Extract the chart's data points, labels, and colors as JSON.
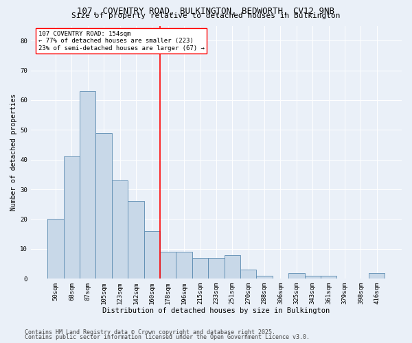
{
  "title_line1": "107, COVENTRY ROAD, BULKINGTON, BEDWORTH, CV12 9NB",
  "title_line2": "Size of property relative to detached houses in Bulkington",
  "xlabel": "Distribution of detached houses by size in Bulkington",
  "ylabel": "Number of detached properties",
  "categories": [
    "50sqm",
    "68sqm",
    "87sqm",
    "105sqm",
    "123sqm",
    "142sqm",
    "160sqm",
    "178sqm",
    "196sqm",
    "215sqm",
    "233sqm",
    "251sqm",
    "270sqm",
    "288sqm",
    "306sqm",
    "325sqm",
    "343sqm",
    "361sqm",
    "379sqm",
    "398sqm",
    "416sqm"
  ],
  "values": [
    20,
    41,
    63,
    49,
    33,
    26,
    16,
    9,
    9,
    7,
    7,
    8,
    3,
    1,
    0,
    2,
    1,
    1,
    0,
    0,
    2
  ],
  "bar_color": "#c8d8e8",
  "bar_edge_color": "#5a8ab0",
  "vline_x": 6.5,
  "vline_color": "red",
  "annotation_title": "107 COVENTRY ROAD: 154sqm",
  "annotation_line1": "← 77% of detached houses are smaller (223)",
  "annotation_line2": "23% of semi-detached houses are larger (67) →",
  "annotation_box_color": "white",
  "annotation_box_edge": "red",
  "ylim": [
    0,
    85
  ],
  "yticks": [
    0,
    10,
    20,
    30,
    40,
    50,
    60,
    70,
    80
  ],
  "bg_color": "#eaf0f8",
  "plot_bg_color": "#eaf0f8",
  "footer_line1": "Contains HM Land Registry data © Crown copyright and database right 2025.",
  "footer_line2": "Contains public sector information licensed under the Open Government Licence v3.0.",
  "title_fontsize": 9,
  "subtitle_fontsize": 8,
  "xlabel_fontsize": 7.5,
  "ylabel_fontsize": 7,
  "tick_fontsize": 6.5,
  "annot_fontsize": 6.5,
  "footer_fontsize": 6
}
